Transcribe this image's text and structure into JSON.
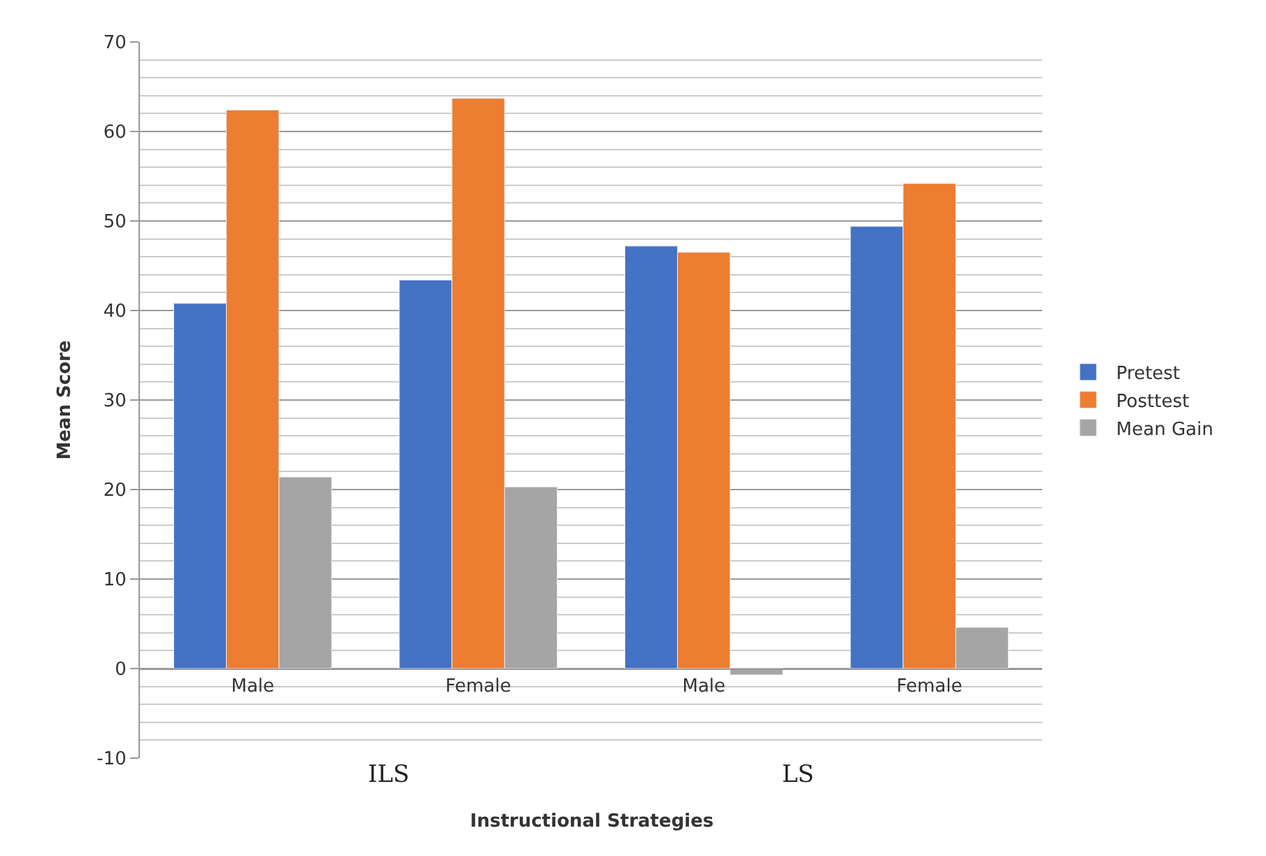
{
  "chart_data": {
    "type": "bar",
    "xlabel": "Instructional Strategies",
    "ylabel": "Mean Score",
    "categories": [
      "Male",
      "Female",
      "Male",
      "Female"
    ],
    "series": [
      {
        "name": "Pretest",
        "color": "#4472c4",
        "values": [
          40.8,
          43.4,
          47.2,
          49.4
        ]
      },
      {
        "name": "Posttest",
        "color": "#ed7d31",
        "values": [
          62.4,
          63.7,
          46.5,
          54.2
        ]
      },
      {
        "name": "Mean Gain",
        "color": "#a5a5a5",
        "values": [
          21.4,
          20.3,
          -0.7,
          4.6
        ]
      }
    ],
    "annotations": [
      "ILS",
      "LS"
    ],
    "ylim": [
      -10,
      70
    ],
    "yticks": [
      -10,
      0,
      10,
      20,
      30,
      40,
      50,
      60,
      70
    ],
    "grid": "y",
    "legend": "right"
  }
}
